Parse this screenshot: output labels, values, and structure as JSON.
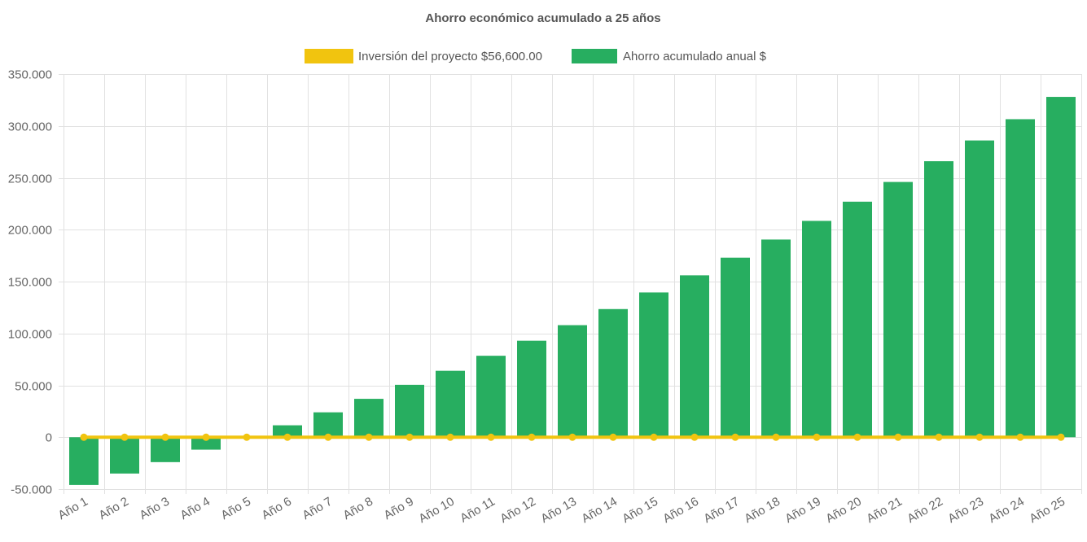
{
  "chart_data": {
    "type": "bar",
    "title": "Ahorro económico acumulado a 25 años",
    "categories": [
      "Año 1",
      "Año 2",
      "Año 3",
      "Año 4",
      "Año 5",
      "Año 6",
      "Año 7",
      "Año 8",
      "Año 9",
      "Año 10",
      "Año 11",
      "Año 12",
      "Año 13",
      "Año 14",
      "Año 15",
      "Año 16",
      "Año 17",
      "Año 18",
      "Año 19",
      "Año 20",
      "Año 21",
      "Año 22",
      "Año 23",
      "Año 24",
      "Año 25"
    ],
    "series": [
      {
        "name": "Inversión del proyecto $56,600.00",
        "type": "line",
        "color": "#f1c40f",
        "values": [
          0,
          0,
          0,
          0,
          0,
          0,
          0,
          0,
          0,
          0,
          0,
          0,
          0,
          0,
          0,
          0,
          0,
          0,
          0,
          0,
          0,
          0,
          0,
          0,
          0
        ]
      },
      {
        "name": "Ahorro acumulado anual $",
        "type": "bar",
        "color": "#27ae60",
        "values": [
          -46000,
          -35000,
          -24000,
          -12000,
          0,
          11500,
          24000,
          37000,
          50500,
          64000,
          78500,
          93000,
          108000,
          123500,
          139500,
          156000,
          173000,
          190500,
          208500,
          227000,
          246000,
          266000,
          286000,
          306500,
          328000
        ]
      }
    ],
    "ylim": [
      -50000,
      350000
    ],
    "yticks": [
      350000,
      300000,
      250000,
      200000,
      150000,
      100000,
      50000,
      0,
      -50000
    ],
    "ytick_labels": [
      "350.000",
      "300.000",
      "250.000",
      "200.000",
      "150.000",
      "100.000",
      "50.000",
      "0",
      "-50.000"
    ],
    "legend_position": "top",
    "grid": true
  }
}
